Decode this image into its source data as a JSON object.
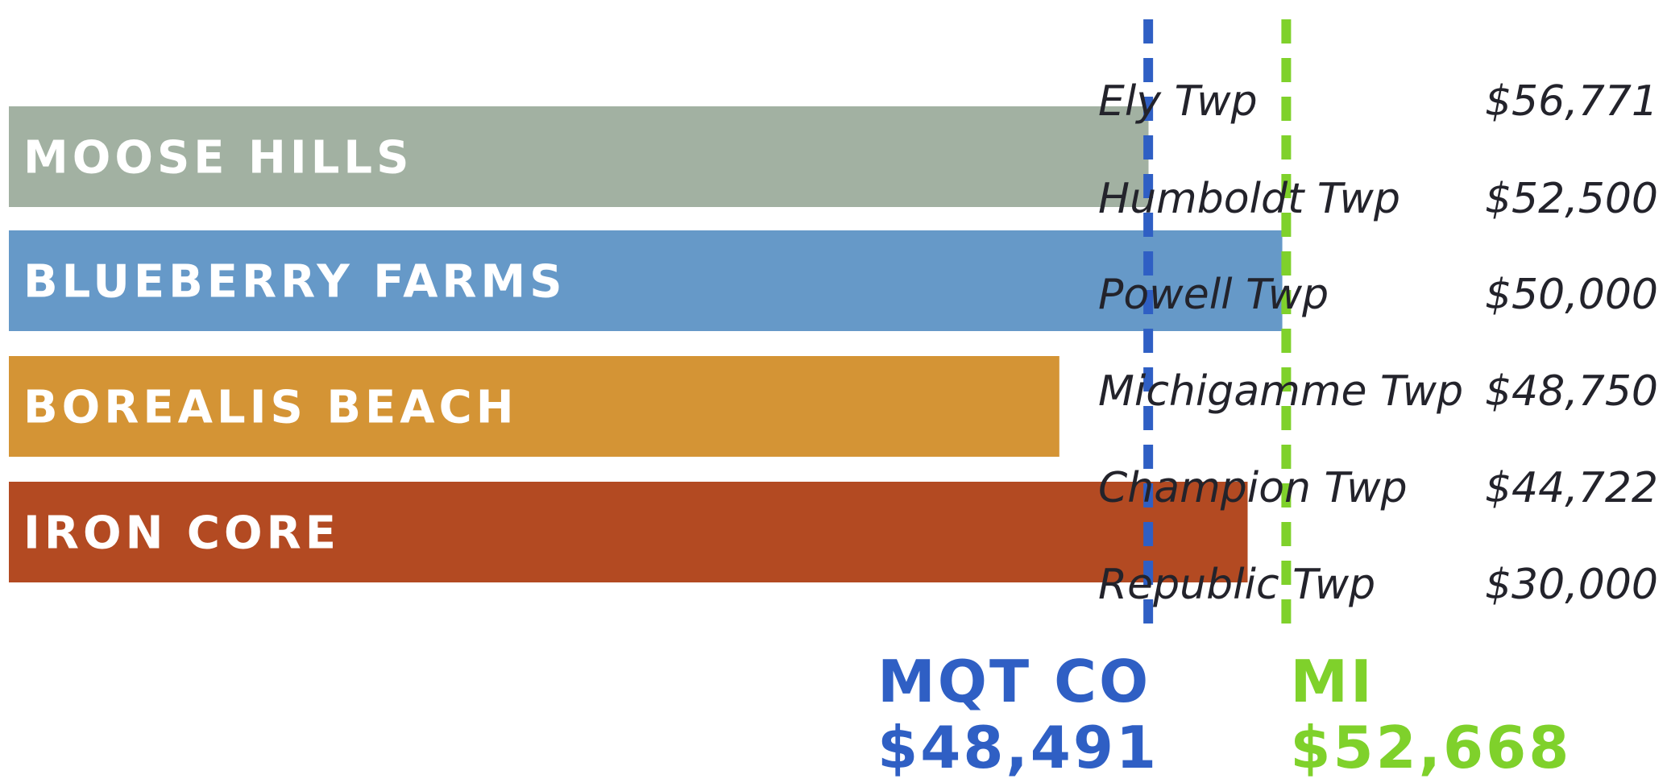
{
  "chart_data": {
    "type": "bar",
    "categories": [
      "MOOSE HILLS",
      "BLUEBERRY FARMS",
      "BOREALIS BEACH",
      "IRON CORE"
    ],
    "values": [
      48500,
      52550,
      45800,
      51500
    ],
    "colors": [
      "#a2b1a2",
      "#6699c8",
      "#d49435",
      "#b34a22"
    ],
    "xlim": [
      14000,
      56000
    ],
    "reference_lines": [
      {
        "name": "MQT CO",
        "value": 48491,
        "label": "$48,491",
        "color": "#2f5fc4"
      },
      {
        "name": "MI",
        "value": 52668,
        "label": "$52,668",
        "color": "#7fd12b"
      }
    ]
  },
  "table": {
    "rows": [
      [
        "Ely Twp",
        "$56,771"
      ],
      [
        "Humboldt Twp",
        "$52,500"
      ],
      [
        "Powell Twp",
        "$50,000"
      ],
      [
        "Michigamme Twp",
        "$48,750"
      ],
      [
        "Champion Twp",
        "$44,722"
      ],
      [
        "Republic Twp",
        "$30,000"
      ]
    ]
  }
}
